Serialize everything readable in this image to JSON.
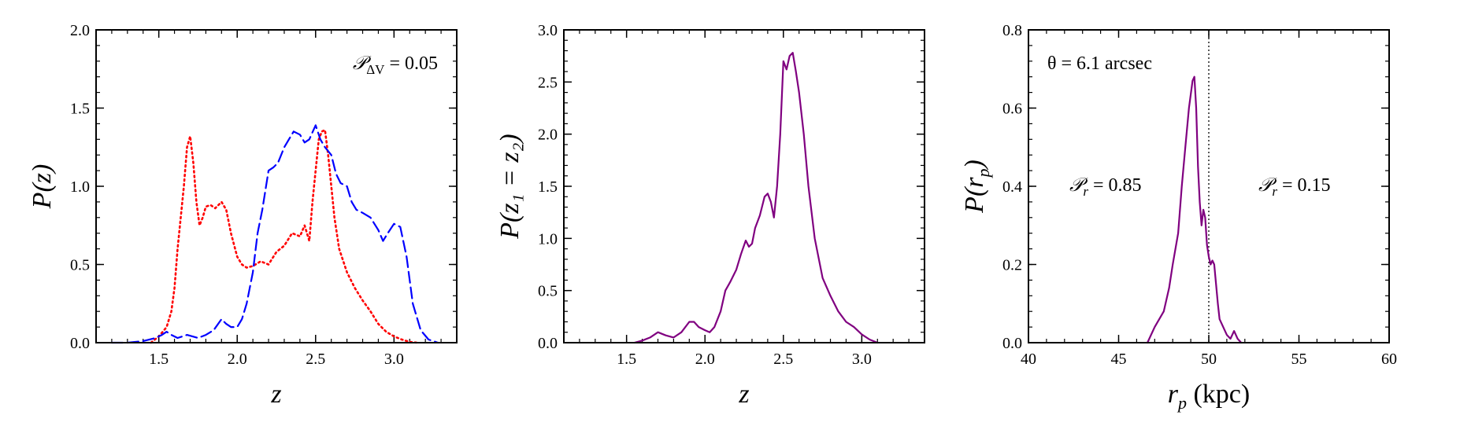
{
  "chart_data": [
    {
      "type": "line",
      "xlim": [
        1.1,
        3.4
      ],
      "ylim": [
        0.0,
        2.0
      ],
      "xticks": [
        1.5,
        2.0,
        2.5,
        3.0
      ],
      "yticks": [
        0.0,
        0.5,
        1.0,
        1.5,
        2.0
      ],
      "xtick_labels": [
        "1.5",
        "2.0",
        "2.5",
        "3.0"
      ],
      "ytick_labels": [
        "0.0",
        "0.5",
        "1.0",
        "1.5",
        "2.0"
      ],
      "xlabel": "z",
      "ylabel": "P(z)",
      "annotation": {
        "symbol": "𝒫",
        "sub": "ΔV",
        "value": " = 0.05"
      },
      "series": [
        {
          "style": "dotted",
          "color": "#ff0000",
          "x": [
            1.45,
            1.5,
            1.55,
            1.58,
            1.6,
            1.62,
            1.64,
            1.66,
            1.68,
            1.7,
            1.72,
            1.74,
            1.76,
            1.78,
            1.8,
            1.83,
            1.86,
            1.9,
            1.93,
            1.96,
            2.0,
            2.03,
            2.06,
            2.1,
            2.15,
            2.2,
            2.25,
            2.3,
            2.35,
            2.4,
            2.43,
            2.46,
            2.48,
            2.5,
            2.52,
            2.54,
            2.56,
            2.58,
            2.6,
            2.62,
            2.65,
            2.7,
            2.75,
            2.8,
            2.85,
            2.9,
            2.95,
            3.0,
            3.05,
            3.1,
            3.15
          ],
          "y": [
            0.0,
            0.04,
            0.1,
            0.2,
            0.35,
            0.6,
            0.8,
            1.0,
            1.25,
            1.32,
            1.15,
            0.9,
            0.75,
            0.8,
            0.87,
            0.88,
            0.86,
            0.9,
            0.85,
            0.7,
            0.55,
            0.5,
            0.48,
            0.49,
            0.52,
            0.5,
            0.58,
            0.62,
            0.7,
            0.68,
            0.75,
            0.65,
            0.9,
            1.1,
            1.3,
            1.35,
            1.36,
            1.2,
            1.0,
            0.8,
            0.6,
            0.45,
            0.35,
            0.27,
            0.2,
            0.12,
            0.07,
            0.04,
            0.02,
            0.005,
            0.0
          ]
        },
        {
          "style": "dashed",
          "color": "#0000ff",
          "x": [
            1.2,
            1.3,
            1.4,
            1.48,
            1.52,
            1.55,
            1.58,
            1.62,
            1.68,
            1.75,
            1.8,
            1.85,
            1.9,
            1.93,
            1.96,
            2.0,
            2.03,
            2.06,
            2.1,
            2.13,
            2.16,
            2.2,
            2.23,
            2.26,
            2.3,
            2.33,
            2.36,
            2.4,
            2.43,
            2.46,
            2.5,
            2.53,
            2.56,
            2.6,
            2.63,
            2.66,
            2.7,
            2.73,
            2.76,
            2.8,
            2.85,
            2.9,
            2.93,
            2.96,
            3.0,
            3.04,
            3.08,
            3.12,
            3.17,
            3.22,
            3.28
          ],
          "y": [
            0.0,
            0.0,
            0.01,
            0.03,
            0.05,
            0.07,
            0.05,
            0.03,
            0.05,
            0.03,
            0.05,
            0.08,
            0.15,
            0.12,
            0.1,
            0.1,
            0.15,
            0.25,
            0.45,
            0.7,
            0.85,
            1.1,
            1.12,
            1.15,
            1.25,
            1.3,
            1.35,
            1.33,
            1.28,
            1.3,
            1.39,
            1.3,
            1.25,
            1.2,
            1.08,
            1.02,
            1.0,
            0.9,
            0.85,
            0.83,
            0.8,
            0.72,
            0.65,
            0.7,
            0.76,
            0.74,
            0.55,
            0.25,
            0.08,
            0.02,
            0.0
          ]
        }
      ]
    },
    {
      "type": "line",
      "xlim": [
        1.1,
        3.4
      ],
      "ylim": [
        0.0,
        3.0
      ],
      "xticks": [
        1.5,
        2.0,
        2.5,
        3.0
      ],
      "yticks": [
        0.0,
        0.5,
        1.0,
        1.5,
        2.0,
        2.5,
        3.0
      ],
      "xtick_labels": [
        "1.5",
        "2.0",
        "2.5",
        "3.0"
      ],
      "ytick_labels": [
        "0.0",
        "0.5",
        "1.0",
        "1.5",
        "2.0",
        "2.5",
        "3.0"
      ],
      "xlabel": "z",
      "ylabel": "P(z₁ = z₂)",
      "series": [
        {
          "style": "solid",
          "color": "#800080",
          "x": [
            1.55,
            1.6,
            1.65,
            1.7,
            1.75,
            1.8,
            1.85,
            1.9,
            1.93,
            1.96,
            2.0,
            2.03,
            2.06,
            2.1,
            2.13,
            2.16,
            2.2,
            2.23,
            2.26,
            2.28,
            2.3,
            2.32,
            2.35,
            2.38,
            2.4,
            2.42,
            2.44,
            2.46,
            2.48,
            2.5,
            2.52,
            2.54,
            2.56,
            2.58,
            2.6,
            2.63,
            2.66,
            2.7,
            2.75,
            2.8,
            2.85,
            2.9,
            2.95,
            3.0,
            3.05,
            3.1
          ],
          "y": [
            0.0,
            0.02,
            0.05,
            0.1,
            0.07,
            0.05,
            0.1,
            0.2,
            0.2,
            0.15,
            0.12,
            0.1,
            0.15,
            0.3,
            0.5,
            0.58,
            0.7,
            0.85,
            0.98,
            0.92,
            0.95,
            1.1,
            1.22,
            1.4,
            1.43,
            1.35,
            1.2,
            1.5,
            2.0,
            2.7,
            2.62,
            2.75,
            2.78,
            2.6,
            2.4,
            2.0,
            1.5,
            1.0,
            0.62,
            0.45,
            0.3,
            0.2,
            0.15,
            0.08,
            0.03,
            0.0
          ]
        }
      ]
    },
    {
      "type": "line",
      "xlim": [
        40,
        60
      ],
      "ylim": [
        0.0,
        0.8
      ],
      "xticks": [
        40,
        45,
        50,
        55,
        60
      ],
      "yticks": [
        0.0,
        0.2,
        0.4,
        0.6,
        0.8
      ],
      "xtick_labels": [
        "40",
        "45",
        "50",
        "55",
        "60"
      ],
      "ytick_labels": [
        "0.0",
        "0.2",
        "0.4",
        "0.6",
        "0.8"
      ],
      "xlabel": "r_p (kpc)",
      "ylabel": "P(r_p)",
      "annotation_theta": "θ = 6.1 arcsec",
      "annotation_left": {
        "symbol": "𝒫",
        "sub": "r",
        "value": " = 0.85"
      },
      "annotation_right": {
        "symbol": "𝒫",
        "sub": "r",
        "value": " = 0.15"
      },
      "vline_x": 50,
      "series": [
        {
          "style": "solid",
          "color": "#800080",
          "x": [
            46.6,
            47.0,
            47.5,
            47.8,
            48.0,
            48.3,
            48.5,
            48.7,
            48.9,
            49.1,
            49.2,
            49.3,
            49.4,
            49.5,
            49.6,
            49.7,
            49.8,
            49.9,
            50.0,
            50.1,
            50.2,
            50.3,
            50.4,
            50.5,
            50.6,
            50.8,
            51.0,
            51.2,
            51.4,
            51.6,
            51.8
          ],
          "y": [
            0.0,
            0.04,
            0.08,
            0.14,
            0.2,
            0.28,
            0.4,
            0.5,
            0.6,
            0.67,
            0.68,
            0.6,
            0.45,
            0.36,
            0.3,
            0.34,
            0.32,
            0.25,
            0.22,
            0.2,
            0.21,
            0.2,
            0.15,
            0.1,
            0.06,
            0.04,
            0.02,
            0.01,
            0.03,
            0.01,
            0.0
          ]
        }
      ]
    }
  ]
}
